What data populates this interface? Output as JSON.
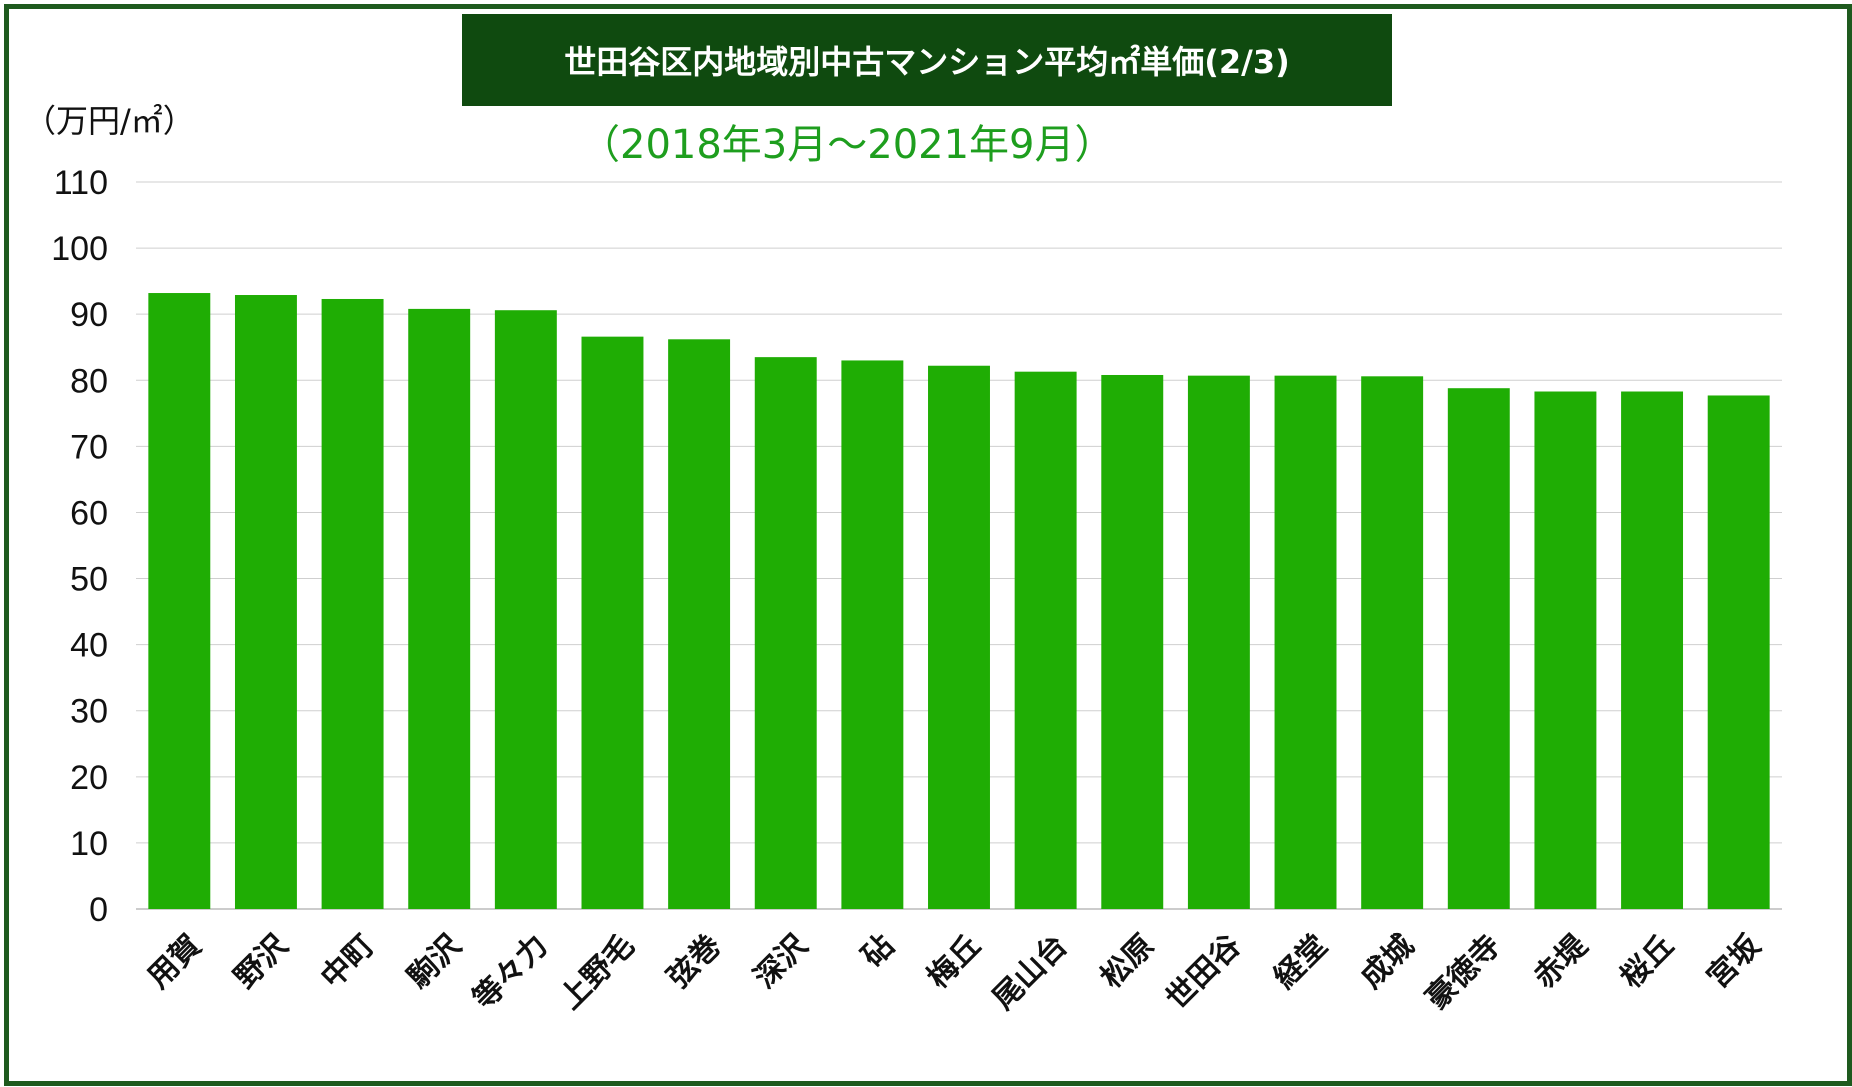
{
  "chart_data": {
    "type": "bar",
    "title": "世田谷区内地域別中古マンション平均㎡単価(2/3)",
    "subtitle": "（2018年3月〜2021年9月）",
    "ylabel": "（万円/㎡）",
    "xlabel": "",
    "ylim": [
      0,
      110
    ],
    "yticks": [
      0,
      10,
      20,
      30,
      40,
      50,
      60,
      70,
      80,
      90,
      100,
      110
    ],
    "grid": true,
    "bar_color": "#1fad04",
    "categories": [
      "用賀",
      "野沢",
      "中町",
      "駒沢",
      "等々力",
      "上野毛",
      "弦巻",
      "深沢",
      "砧",
      "梅丘",
      "尾山台",
      "松原",
      "世田谷",
      "経堂",
      "成城",
      "豪徳寺",
      "赤堤",
      "桜丘",
      "宮坂"
    ],
    "values": [
      93.2,
      92.9,
      92.3,
      90.8,
      90.6,
      86.6,
      86.2,
      83.5,
      83.0,
      82.2,
      81.3,
      80.8,
      80.7,
      80.7,
      80.6,
      78.8,
      78.3,
      78.3,
      77.7
    ]
  }
}
